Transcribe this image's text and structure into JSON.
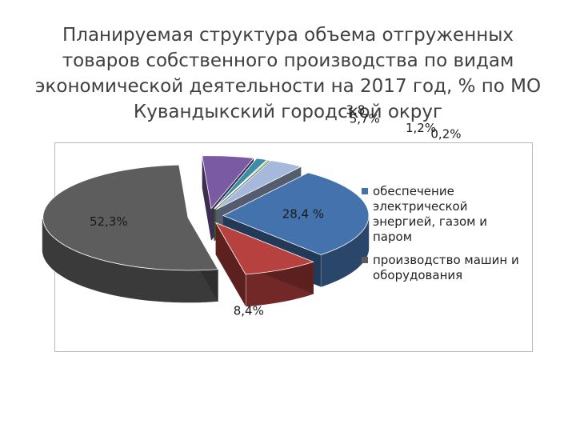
{
  "slide": {
    "title": "Планируемая структура объема отгруженных товаров собственного производства по видам экономической деятельности на 2017 год, % по МО Кувандыкский городской округ"
  },
  "chart_data": {
    "type": "pie",
    "title": "",
    "slices": [
      {
        "label": "3,8",
        "value": 3.8,
        "color": "#a6b9dc"
      },
      {
        "label": "28,4 %",
        "value": 28.4,
        "color": "#4372ad",
        "legend": "обеспечение электрической энергией, газом и паром"
      },
      {
        "label": "8,4%",
        "value": 8.4,
        "color": "#b7413e"
      },
      {
        "label": "52,3%",
        "value": 52.3,
        "color": "#5d5d5d",
        "legend": "производство машин и оборудования"
      },
      {
        "label": "5,7%",
        "value": 5.7,
        "color": "#7a5aa2"
      },
      {
        "label": "1,2%",
        "value": 1.2,
        "color": "#3b8ea5"
      },
      {
        "label": "0,2%",
        "value": 0.2,
        "color": "#8bb04a"
      }
    ],
    "legend": [
      {
        "label": "обеспечение электрической энергией, газом и паром",
        "color": "#4372ad"
      },
      {
        "label": "производство машин и оборудования",
        "color": "#5d5d5d"
      }
    ],
    "legend_position": "right"
  }
}
